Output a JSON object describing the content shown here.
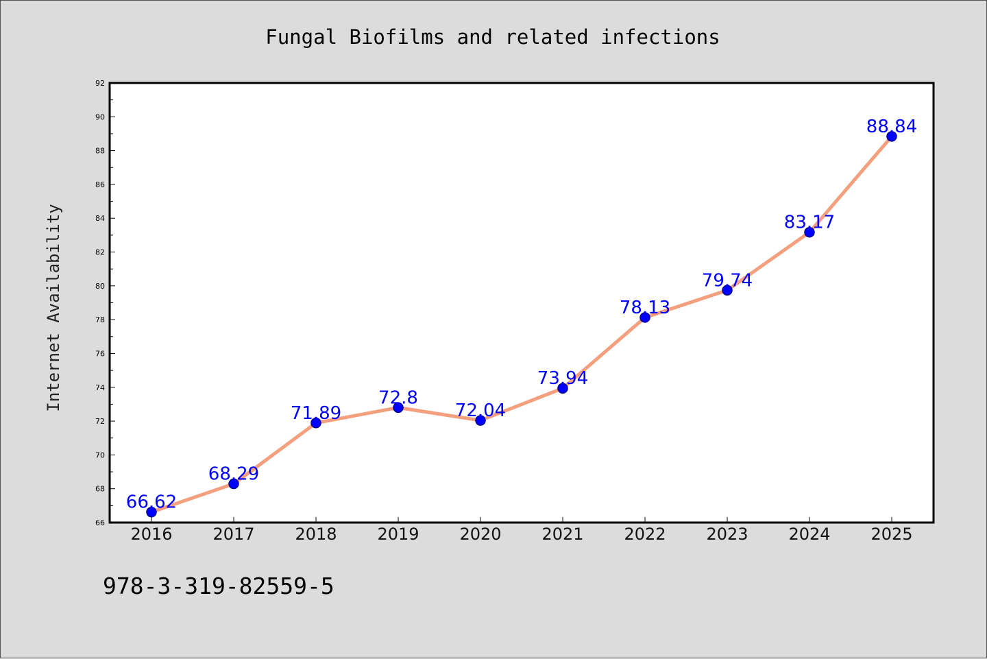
{
  "chart_data": {
    "type": "line",
    "title": "Fungal Biofilms and related infections",
    "xlabel": "",
    "ylabel": "Internet Availability",
    "categories": [
      "2016",
      "2017",
      "2018",
      "2019",
      "2020",
      "2021",
      "2022",
      "2023",
      "2024",
      "2025"
    ],
    "series": [
      {
        "values": [
          66.62,
          68.29,
          71.89,
          72.8,
          72.04,
          73.94,
          78.13,
          79.74,
          83.17,
          88.84
        ]
      }
    ],
    "data_labels": [
      "66.62",
      "68.29",
      "71.89",
      "72.8",
      "72.04",
      "73.94",
      "78.13",
      "79.74",
      "83.17",
      "88.84"
    ],
    "ylim": [
      66,
      92
    ],
    "yticks": [
      66,
      68,
      70,
      72,
      74,
      76,
      78,
      80,
      82,
      84,
      86,
      88,
      90,
      92
    ],
    "grid": false,
    "legend": "none",
    "colors": {
      "line": "#f4a07e",
      "marker": "#0000ff",
      "marker_edge": "#00008b",
      "data_label": "#0000ff",
      "background": "#dcdcdc",
      "plot_background": "#ffffff"
    }
  },
  "footer": {
    "text": "978-3-319-82559-5"
  }
}
